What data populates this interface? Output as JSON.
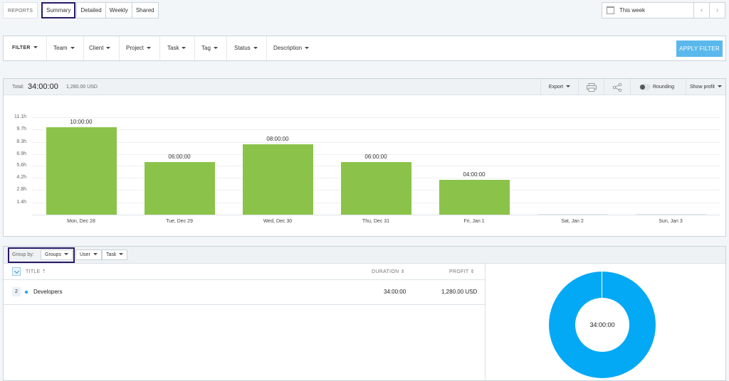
{
  "tabs": {
    "reports": "REPORTS",
    "items": [
      "Summary",
      "Detailed",
      "Weekly",
      "Shared"
    ],
    "active": "Summary"
  },
  "date_range": {
    "label": "This week",
    "prev": "‹",
    "next": "›"
  },
  "filters": {
    "items": [
      "FILTER",
      "Team",
      "Client",
      "Project",
      "Task",
      "Tag",
      "Status",
      "Description"
    ],
    "apply": "APPLY FILTER"
  },
  "totals": {
    "label": "Total:",
    "time": "34:00:00",
    "amount": "1,280.00 USD"
  },
  "chart_toolbar": {
    "export": "Export",
    "rounding": "Rounding",
    "show": "Show profit"
  },
  "colors": {
    "bar": "#8bc34a",
    "accent": "#03a9f4",
    "apply": "#5ab8ec",
    "highlight": "#2b1966"
  },
  "chart_data": {
    "type": "bar",
    "categories": [
      "Mon, Dec 28",
      "Tue, Dec 29",
      "Wed, Dec 30",
      "Thu, Dec 31",
      "Fri, Jan 1",
      "Sat, Jan 2",
      "Sun, Jan 3"
    ],
    "values": [
      10,
      6,
      8,
      6,
      4,
      0,
      0
    ],
    "data_labels": [
      "10:00:00",
      "06:00:00",
      "08:00:00",
      "06:00:00",
      "04:00:00",
      "",
      ""
    ],
    "yticks": [
      "1.4h",
      "2.8h",
      "4.2h",
      "5.6h",
      "6.9h",
      "8.3h",
      "9.7h",
      "11.1h"
    ],
    "ytick_values": [
      1.4,
      2.8,
      4.2,
      5.6,
      6.9,
      8.3,
      9.7,
      11.1
    ],
    "ylim": [
      0,
      11.1
    ],
    "grid": true
  },
  "group_by": {
    "label": "Group by:",
    "buttons": [
      "Groups",
      "User",
      "Task"
    ]
  },
  "table": {
    "headers": {
      "title": "TITLE",
      "duration": "DURATION",
      "profit": "PROFIT"
    },
    "rows": [
      {
        "count": "2",
        "name": "Developers",
        "duration": "34:00:00",
        "profit": "1,280.00 USD"
      }
    ]
  },
  "donut": {
    "center_label": "34:00:00"
  }
}
